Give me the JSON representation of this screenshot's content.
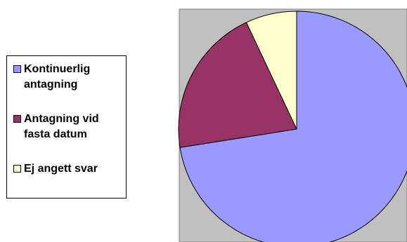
{
  "chart_data": {
    "type": "pie",
    "title": "",
    "categories": [
      "Kontinuerlig antagning",
      "Antagning vid fasta datum",
      "Ej angett svar"
    ],
    "values": [
      72.5,
      20.5,
      7.0
    ],
    "colors": [
      "#9999ff",
      "#993366",
      "#ffffcc"
    ],
    "plot_background": "#c0c0c0",
    "start_angle_degrees": 0,
    "direction": "clockwise",
    "legend_position": "left"
  }
}
